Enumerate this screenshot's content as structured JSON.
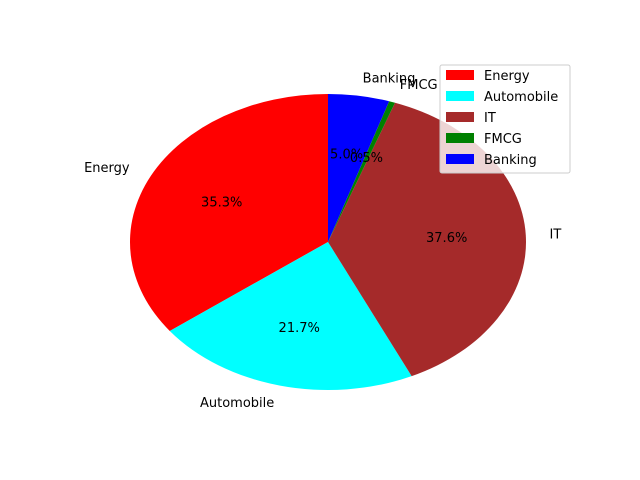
{
  "chart_data": {
    "type": "pie",
    "title": "",
    "categories": [
      "Energy",
      "Automobile",
      "IT",
      "FMCG",
      "Banking"
    ],
    "values": [
      35.3,
      21.7,
      37.6,
      0.5,
      5.0
    ],
    "pct_labels": [
      "35.3%",
      "21.7%",
      "37.6%",
      "0.5%",
      "5.0%"
    ],
    "colors": [
      "#ff0000",
      "#00ffff",
      "#a52a2a",
      "#008000",
      "#0000ff"
    ],
    "start_angle_deg": 90,
    "direction": "counterclockwise",
    "legend_position": "top-right"
  }
}
